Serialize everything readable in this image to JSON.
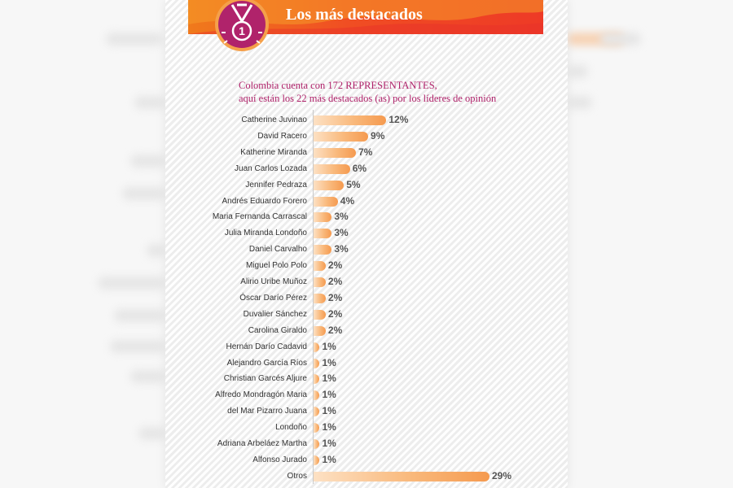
{
  "header": {
    "title": "Los más destacados",
    "medal_number": "1"
  },
  "subtitle": {
    "line1": "Colombia cuenta con 172 REPRESENTANTES,",
    "line2": "aquí están los 22 más destacados (as) por los líderes de opinión"
  },
  "colors": {
    "header_start": "#f07a1c",
    "header_end": "#ee3a26",
    "subtitle": "#b0236b",
    "medal": "#b0236b",
    "bar_light": "#fde1c4",
    "bar_dark": "#f59a4f"
  },
  "chart_data": {
    "type": "bar",
    "orientation": "horizontal",
    "categories": [
      "Catherine Juvinao",
      "David Racero",
      "Katherine Miranda",
      "Juan Carlos Lozada",
      "Jennifer Pedraza",
      "Andrés Eduardo Forero",
      "Maria Fernanda Carrascal",
      "Julia Miranda Londoño",
      "Daniel Carvalho",
      "Miguel Polo Polo",
      "Alirio Uribe Muñoz",
      "Óscar Darío Pérez",
      "Duvalier Sánchez",
      "Carolina Giraldo",
      "Hernán Darío Cadavid",
      "Alejandro García Ríos",
      "Christian Garcés Aljure",
      "Alfredo Mondragón Maria",
      "del Mar Pizarro Juana",
      "Londoño",
      "Adriana  Arbeláez Martha",
      "Alfonso Jurado",
      "Otros"
    ],
    "values": [
      12,
      9,
      7,
      6,
      5,
      4,
      3,
      3,
      3,
      2,
      2,
      2,
      2,
      2,
      1,
      1,
      1,
      1,
      1,
      1,
      1,
      1,
      29
    ],
    "labels": [
      "12%",
      "9%",
      "7%",
      "6%",
      "5%",
      "4%",
      "3%",
      "3%",
      "3%",
      "2%",
      "2%",
      "2%",
      "2%",
      "2%",
      "1%",
      "1%",
      "1%",
      "1%",
      "1%",
      "1%",
      "1%",
      "1%",
      "29%"
    ],
    "xlim": [
      0,
      29
    ],
    "grid": false
  }
}
